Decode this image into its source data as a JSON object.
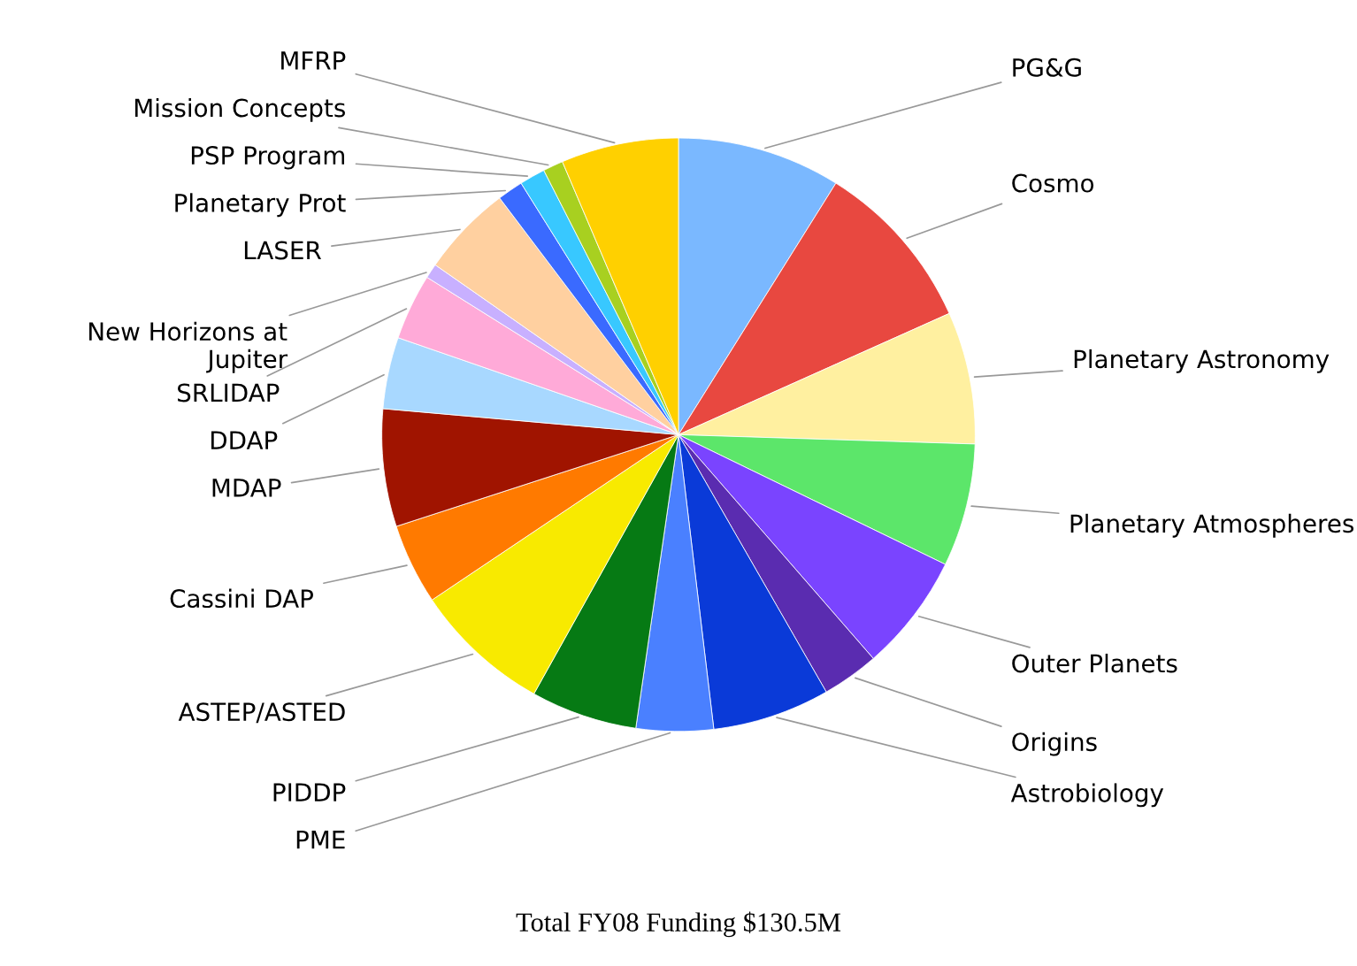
{
  "chart_data": {
    "type": "pie",
    "categories": [
      "PG&G",
      "Cosmo",
      "Planetary Astronomy",
      "Planetary Atmospheres",
      "Outer Planets",
      "Origins",
      "Astrobiology",
      "PME",
      "PIDDP",
      "ASTEP/ASTED",
      "Cassini DAP",
      "MDAP",
      "DDAP",
      "SRLIDAP",
      "New Horizons at\nJupiter",
      "LASER",
      "Planetary Prot",
      "PSP Program",
      "Mission Concepts",
      "MFRP"
    ],
    "values": [
      8.9,
      9.4,
      7.2,
      6.7,
      6.4,
      3.1,
      6.4,
      4.2,
      5.8,
      7.5,
      4.4,
      6.4,
      3.9,
      3.6,
      0.8,
      5.0,
      1.4,
      1.4,
      1.1,
      6.4
    ],
    "colors": [
      "#7ab8ff",
      "#e84840",
      "#fff0a0",
      "#5ce66a",
      "#7a44ff",
      "#5a2cb0",
      "#0a3ad8",
      "#4a80ff",
      "#067a14",
      "#f8ea00",
      "#ff7a00",
      "#a01400",
      "#a8d8ff",
      "#ffaad8",
      "#c8b0ff",
      "#ffd0a0",
      "#3a6aff",
      "#38c8ff",
      "#a8d020",
      "#ffd000"
    ],
    "annotations": [
      "Total FY08 Funding $130.5M"
    ]
  }
}
